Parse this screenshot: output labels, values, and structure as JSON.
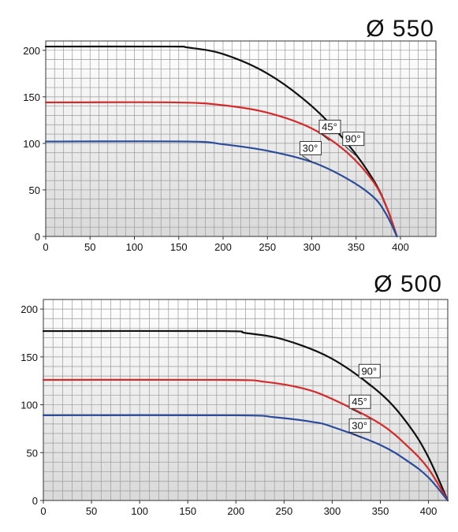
{
  "chart_data": [
    {
      "type": "line",
      "title": "Ø 550",
      "xlim": [
        0,
        440
      ],
      "ylim": [
        0,
        210
      ],
      "xticks": [
        0,
        50,
        100,
        150,
        200,
        250,
        300,
        350,
        400
      ],
      "yticks": [
        0,
        50,
        100,
        150,
        200
      ],
      "grid": true,
      "series": [
        {
          "name": "90°",
          "color": "#111111",
          "x": [
            0,
            140,
            160,
            200,
            250,
            300,
            340,
            370,
            385,
            396
          ],
          "y": [
            204,
            204,
            203,
            196,
            175,
            140,
            100,
            60,
            30,
            0
          ]
        },
        {
          "name": "45°",
          "color": "#d42a2a",
          "x": [
            0,
            145,
            200,
            250,
            300,
            340,
            370,
            385,
            396
          ],
          "y": [
            144,
            144,
            141,
            133,
            116,
            90,
            58,
            30,
            0
          ]
        },
        {
          "name": "30°",
          "color": "#2a4a9a",
          "x": [
            0,
            160,
            200,
            250,
            300,
            340,
            370,
            385,
            396
          ],
          "y": [
            102,
            102,
            99,
            92,
            80,
            62,
            42,
            22,
            0
          ]
        }
      ]
    },
    {
      "type": "line",
      "title": "Ø 500",
      "xlim": [
        0,
        420
      ],
      "ylim": [
        0,
        210
      ],
      "xticks": [
        0,
        50,
        100,
        150,
        200,
        250,
        300,
        350,
        400
      ],
      "yticks": [
        0,
        50,
        100,
        150,
        200
      ],
      "grid": true,
      "series": [
        {
          "name": "90°",
          "color": "#111111",
          "x": [
            0,
            185,
            210,
            250,
            300,
            350,
            380,
            400,
            420
          ],
          "y": [
            177,
            177,
            175,
            168,
            148,
            112,
            78,
            45,
            0
          ]
        },
        {
          "name": "45°",
          "color": "#d42a2a",
          "x": [
            0,
            190,
            230,
            270,
            300,
            350,
            380,
            400,
            420
          ],
          "y": [
            126,
            126,
            124,
            117,
            106,
            80,
            55,
            33,
            0
          ]
        },
        {
          "name": "30°",
          "color": "#2a4a9a",
          "x": [
            0,
            200,
            240,
            280,
            300,
            350,
            380,
            400,
            420
          ],
          "y": [
            89,
            89,
            87,
            82,
            77,
            58,
            40,
            24,
            0
          ]
        }
      ]
    }
  ]
}
